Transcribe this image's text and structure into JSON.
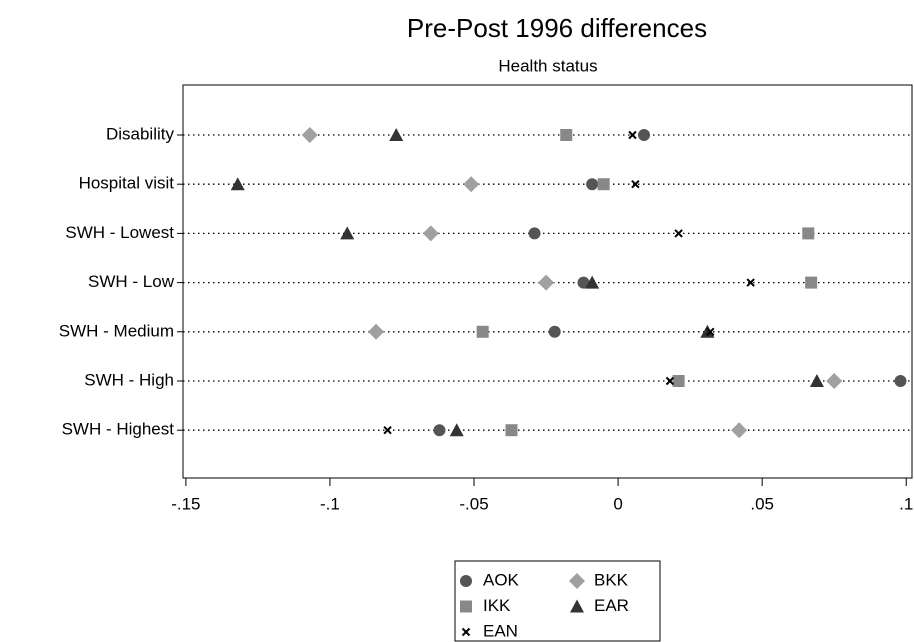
{
  "chart_data": {
    "type": "dot",
    "title": "Pre-Post 1996 differences",
    "subtitle": "Health status",
    "categories": [
      "Disability",
      "Hospital visit",
      "SWH - Lowest",
      "SWH - Low",
      "SWH - Medium",
      "SWH - High",
      "SWH - Highest"
    ],
    "series": [
      {
        "name": "AOK",
        "color": "#555555",
        "marker": "circle",
        "values": [
          0.009,
          -0.009,
          -0.029,
          -0.012,
          -0.022,
          0.098,
          -0.062
        ]
      },
      {
        "name": "BKK",
        "color": "#a0a0a0",
        "marker": "diamond",
        "values": [
          -0.107,
          -0.051,
          -0.065,
          -0.025,
          -0.084,
          0.075,
          0.042
        ]
      },
      {
        "name": "IKK",
        "color": "#888888",
        "marker": "square",
        "values": [
          -0.018,
          -0.005,
          0.066,
          0.067,
          -0.047,
          0.021,
          -0.037
        ]
      },
      {
        "name": "EAR",
        "color": "#333333",
        "marker": "triangle",
        "values": [
          -0.077,
          -0.132,
          -0.094,
          -0.009,
          0.031,
          0.069,
          -0.056
        ]
      },
      {
        "name": "EAN",
        "color": "#000000",
        "marker": "x",
        "values": [
          0.005,
          0.006,
          0.021,
          0.046,
          0.032,
          0.018,
          -0.08
        ]
      }
    ],
    "xlim": [
      -0.151,
      0.102
    ],
    "xticks": [
      {
        "value": -0.15,
        "label": "-.15"
      },
      {
        "value": -0.1,
        "label": "-.1"
      },
      {
        "value": -0.05,
        "label": "-.05"
      },
      0,
      {
        "value": 0.05,
        "label": ".05"
      },
      {
        "value": 0.1,
        "label": ".1"
      }
    ]
  }
}
